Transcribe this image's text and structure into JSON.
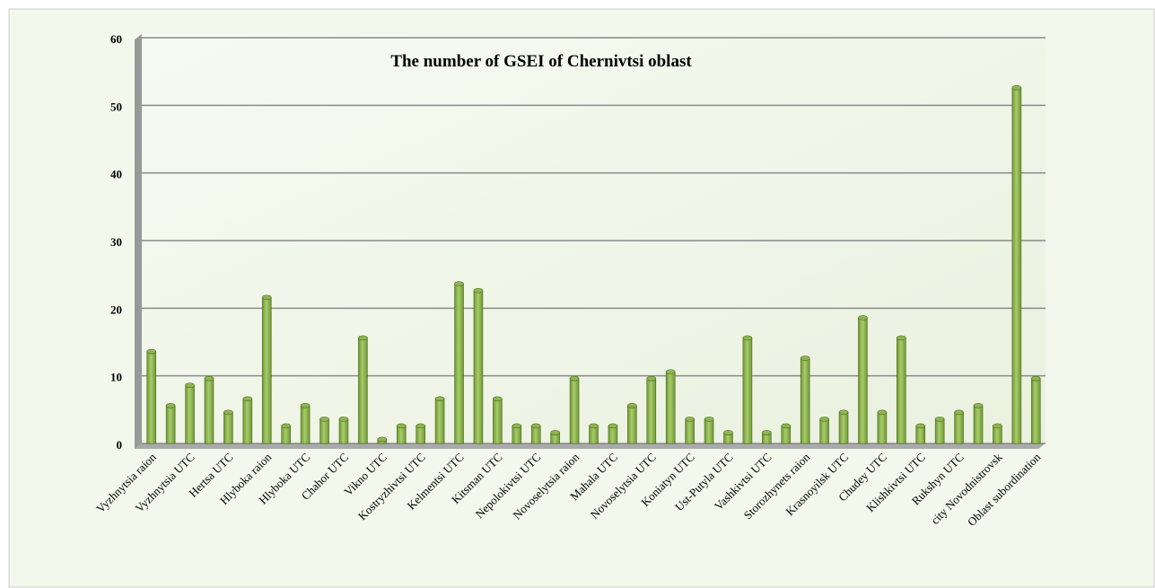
{
  "chart_data": {
    "type": "bar",
    "title": "The number of GSEI of Chernivtsi oblast",
    "categories": [
      "Vyzhnytsia raion",
      null,
      "Vyzhnytsia UTC",
      null,
      "Hertsa UTC",
      null,
      "Hlyboka raion",
      null,
      "Hlyboka UTC",
      null,
      "Chahor UTC",
      null,
      "Vikno UTC",
      null,
      "Kostryzhivtsi UTC",
      null,
      "Kelmentsi UTC",
      null,
      "Kitsman UTC",
      null,
      "Nepolokivtsi UTC",
      null,
      "Novoselytsia raion",
      null,
      "Mahala UTC",
      null,
      "Novoselytsia UTC",
      null,
      "Koniatyn UTC",
      null,
      "Ust-Putyla UTC",
      null,
      "Vashkivtsi UTC",
      null,
      "Storozhynets raion",
      null,
      "Krasnoyilsk UTC",
      null,
      "Chudey UTC",
      null,
      "Klishkivtsi UTC",
      null,
      "Rukshyn UTC",
      null,
      "city Novodnistrovsk",
      null,
      "Oblast subordination"
    ],
    "values": [
      14,
      6,
      9,
      10,
      5,
      7,
      22,
      3,
      6,
      4,
      4,
      16,
      1,
      3,
      3,
      7,
      24,
      23,
      7,
      3,
      3,
      2,
      10,
      3,
      3,
      6,
      10,
      11,
      4,
      4,
      2,
      16,
      2,
      3,
      13,
      4,
      5,
      19,
      5,
      16,
      3,
      4,
      5,
      6,
      3,
      53,
      10
    ],
    "color": "#8fb552",
    "ylim": [
      0,
      60
    ],
    "yticks": [
      0,
      10,
      20,
      30,
      40,
      50,
      60
    ],
    "grid": true
  }
}
